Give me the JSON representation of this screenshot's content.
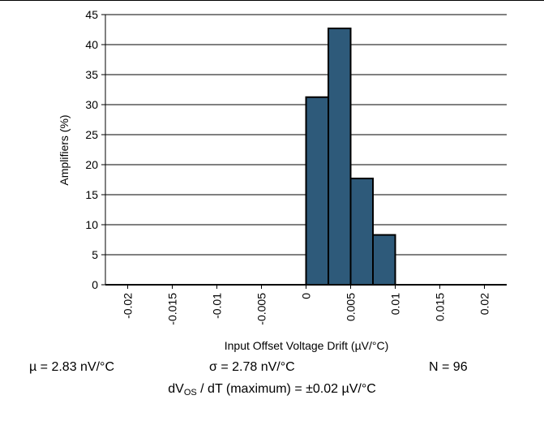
{
  "chart_data": {
    "type": "bar",
    "title": "",
    "xlabel": "Input Offset Voltage Drift (µV/°C)",
    "ylabel": "Amplifiers (%)",
    "xlim": [
      -0.0225,
      0.0225
    ],
    "ylim": [
      0,
      45
    ],
    "x_ticks": [
      "-0.02",
      "-0.015",
      "-0.01",
      "-0.005",
      "0",
      "0.005",
      "0.01",
      "0.015",
      "0.02"
    ],
    "x_tick_values": [
      -0.02,
      -0.015,
      -0.01,
      -0.005,
      0,
      0.005,
      0.01,
      0.015,
      0.02
    ],
    "y_ticks": [
      0,
      5,
      10,
      15,
      20,
      25,
      30,
      35,
      40,
      45
    ],
    "grid": "horizontal",
    "bar_color": "#2e5a7a",
    "bins": [
      {
        "start": 0.0,
        "end": 0.0025,
        "value": 31.25
      },
      {
        "start": 0.0025,
        "end": 0.005,
        "value": 42.7
      },
      {
        "start": 0.005,
        "end": 0.0075,
        "value": 17.7
      },
      {
        "start": 0.0075,
        "end": 0.01,
        "value": 8.3
      }
    ]
  },
  "stats": {
    "mu": "µ = 2.83 nV/°C",
    "sigma": "σ = 2.78 nV/°C",
    "n": "N = 96"
  },
  "drift": {
    "prefix": "dV",
    "sub": "OS",
    "suffix": " / dT (maximum) = ±0.02 µV/°C"
  }
}
